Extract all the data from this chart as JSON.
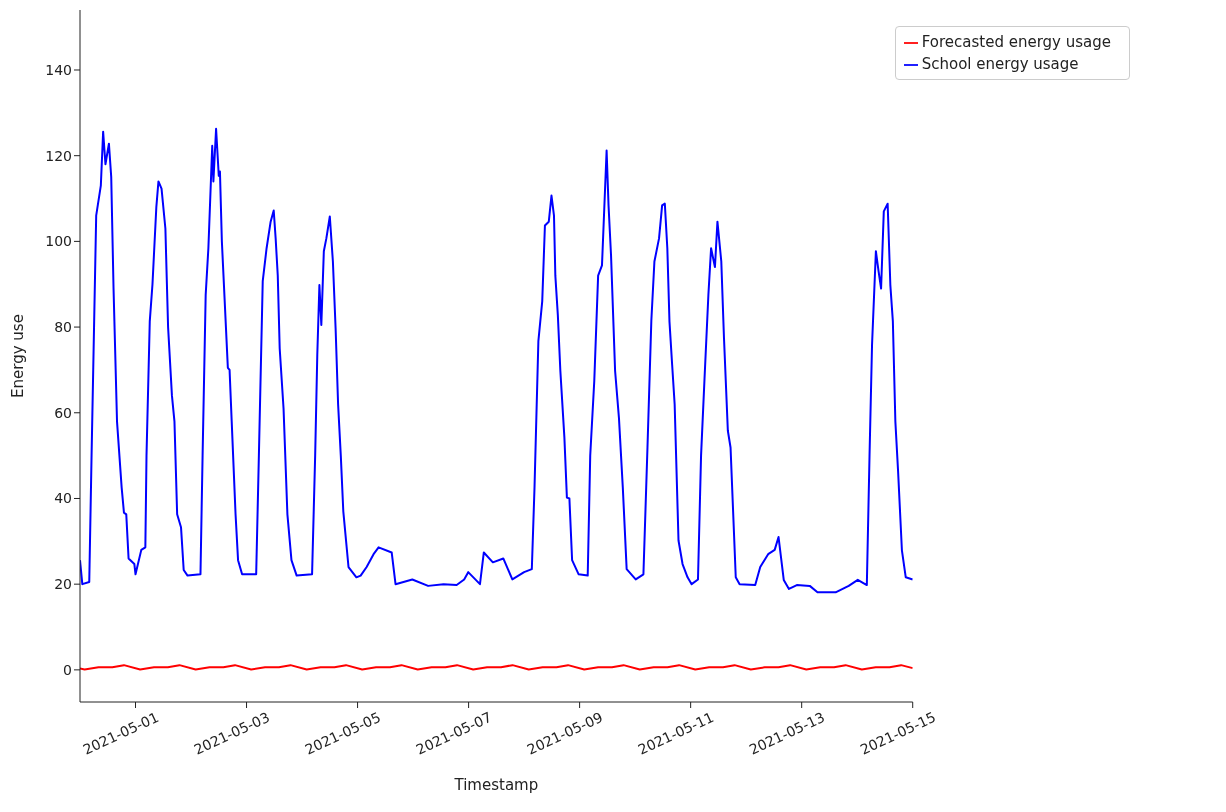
{
  "chart_data": {
    "type": "line",
    "xlabel": "Timestamp",
    "ylabel": "Energy use",
    "xlim": [
      "2021-04-30",
      "2021-05-15"
    ],
    "xticks": [
      "2021-05-01",
      "2021-05-03",
      "2021-05-05",
      "2021-05-07",
      "2021-05-09",
      "2021-05-11",
      "2021-05-13",
      "2021-05-15"
    ],
    "ylim": [
      -7.5,
      154
    ],
    "yticks": [
      0,
      20,
      40,
      60,
      80,
      100,
      120,
      140
    ],
    "legend": "top right",
    "series": [
      {
        "name": "School energy usage",
        "color": "#0000ff",
        "x": [
          "2021-04-30T00:00",
          "2021-04-30T01:00",
          "2021-04-30T04:00",
          "2021-04-30T05:00",
          "2021-04-30T07:00",
          "2021-04-30T09:00",
          "2021-04-30T10:00",
          "2021-04-30T11:00",
          "2021-04-30T12:30",
          "2021-04-30T13:30",
          "2021-04-30T14:30",
          "2021-04-30T16:00",
          "2021-04-30T18:00",
          "2021-04-30T19:00",
          "2021-04-30T20:00",
          "2021-04-30T21:00",
          "2021-04-30T23:30",
          "2021-05-01T00:00",
          "2021-05-01T02:30",
          "2021-05-01T04:15",
          "2021-05-01T04:45",
          "2021-05-01T06:10",
          "2021-05-01T07:20",
          "2021-05-01T09:00",
          "2021-05-01T09:55",
          "2021-05-01T11:15",
          "2021-05-01T12:55",
          "2021-05-01T13:30",
          "2021-05-01T14:05",
          "2021-05-01T15:45",
          "2021-05-01T16:50",
          "2021-05-01T18:00",
          "2021-05-01T19:40",
          "2021-05-01T20:50",
          "2021-05-01T22:30",
          "2021-05-02T04:05",
          "2021-05-02T05:00",
          "2021-05-02T06:20",
          "2021-05-02T07:30",
          "2021-05-02T09:10",
          "2021-05-02T09:40",
          "2021-05-02T10:50",
          "2021-05-02T12:00",
          "2021-05-02T12:30",
          "2021-05-02T13:20",
          "2021-05-02T15:55",
          "2021-05-02T16:40",
          "2021-05-02T17:35",
          "2021-05-02T19:15",
          "2021-05-02T20:20",
          "2021-05-02T22:05",
          "2021-05-03T04:10",
          "2021-05-03T05:20",
          "2021-05-03T07:00",
          "2021-05-03T08:40",
          "2021-05-03T10:25",
          "2021-05-03T11:45",
          "2021-05-03T12:35",
          "2021-05-03T13:30",
          "2021-05-03T14:20",
          "2021-05-03T16:00",
          "2021-05-03T17:40",
          "2021-05-03T19:25",
          "2021-05-03T21:40",
          "2021-05-04T04:20",
          "2021-05-04T05:40",
          "2021-05-04T06:35",
          "2021-05-04T07:30",
          "2021-05-04T08:20",
          "2021-05-04T09:25",
          "2021-05-04T10:30",
          "2021-05-04T12:00",
          "2021-05-04T13:20",
          "2021-05-04T14:30",
          "2021-05-04T15:35",
          "2021-05-04T16:45",
          "2021-05-04T17:50",
          "2021-05-04T20:05",
          "2021-05-04T23:30",
          "2021-05-05T01:20",
          "2021-05-05T03:55",
          "2021-05-05T06:55",
          "2021-05-05T09:05",
          "2021-05-05T14:45",
          "2021-05-05T16:25",
          "2021-05-05T23:40",
          "2021-05-06T06:30",
          "2021-05-06T13:10",
          "2021-05-06T18:50",
          "2021-05-06T22:05",
          "2021-05-06T23:50",
          "2021-05-07T04:55",
          "2021-05-07T06:35",
          "2021-05-07T10:30",
          "2021-05-07T15:00",
          "2021-05-07T18:55",
          "2021-05-08T00:00",
          "2021-05-08T03:20",
          "2021-05-08T04:30",
          "2021-05-08T06:10",
          "2021-05-08T07:50",
          "2021-05-08T09:00",
          "2021-05-08T10:40",
          "2021-05-08T11:50",
          "2021-05-08T12:55",
          "2021-05-08T13:30",
          "2021-05-08T14:35",
          "2021-05-08T15:40",
          "2021-05-08T17:25",
          "2021-05-08T18:30",
          "2021-05-08T19:35",
          "2021-05-08T20:45",
          "2021-05-08T23:35",
          "2021-05-09T03:30",
          "2021-05-09T04:35",
          "2021-05-09T06:20",
          "2021-05-09T08:00",
          "2021-05-09T09:40",
          "2021-05-09T11:40",
          "2021-05-09T12:30",
          "2021-05-09T13:35",
          "2021-05-09T15:20",
          "2021-05-09T17:00",
          "2021-05-09T18:40",
          "2021-05-09T20:20",
          "2021-05-10T00:15",
          "2021-05-10T03:35",
          "2021-05-10T05:20",
          "2021-05-10T07:00",
          "2021-05-10T08:20",
          "2021-05-10T10:20",
          "2021-05-10T11:40",
          "2021-05-10T12:50",
          "2021-05-10T13:55",
          "2021-05-10T14:50",
          "2021-05-10T16:00",
          "2021-05-10T17:05",
          "2021-05-10T18:45",
          "2021-05-10T20:30",
          "2021-05-10T22:40",
          "2021-05-11T00:25",
          "2021-05-11T03:10",
          "2021-05-11T04:30",
          "2021-05-11T06:00",
          "2021-05-11T07:40",
          "2021-05-11T08:50",
          "2021-05-11T10:30",
          "2021-05-11T11:35",
          "2021-05-11T13:15",
          "2021-05-11T14:25",
          "2021-05-11T16:05",
          "2021-05-11T17:15",
          "2021-05-11T19:30",
          "2021-05-11T21:10",
          "2021-05-12T03:55",
          "2021-05-12T06:05",
          "2021-05-12T09:30",
          "2021-05-12T12:20",
          "2021-05-12T14:00",
          "2021-05-12T16:15",
          "2021-05-12T18:30",
          "2021-05-12T21:55",
          "2021-05-13T03:30",
          "2021-05-13T06:50",
          "2021-05-13T14:40",
          "2021-05-13T20:20",
          "2021-05-14T00:15",
          "2021-05-14T04:10",
          "2021-05-14T05:20",
          "2021-05-14T06:25",
          "2021-05-14T08:05",
          "2021-05-14T09:15",
          "2021-05-14T10:20",
          "2021-05-14T11:30",
          "2021-05-14T13:10",
          "2021-05-14T14:20",
          "2021-05-14T15:25",
          "2021-05-14T16:30",
          "2021-05-14T17:40",
          "2021-05-14T19:20",
          "2021-05-14T21:00",
          "2021-05-15T00:00"
        ],
        "values": [
          25.6,
          20,
          20.5,
          50,
          106,
          113,
          125.6,
          118,
          122.8,
          115,
          89,
          58,
          42.6,
          36.7,
          36.3,
          26,
          24.7,
          22.3,
          28,
          28.6,
          50,
          81.4,
          90,
          108,
          114,
          112.3,
          103,
          91.4,
          80,
          64,
          58,
          36.3,
          33.3,
          23.3,
          22,
          22.3,
          50,
          87.5,
          98.4,
          122.3,
          114,
          126.3,
          115.3,
          116.3,
          100,
          70.5,
          70,
          58,
          36.3,
          25.6,
          22.3,
          22.3,
          50,
          90.7,
          98.4,
          104.6,
          107.2,
          100.7,
          92,
          75,
          61,
          36.3,
          25.6,
          22,
          22.3,
          50,
          73.5,
          89.8,
          80.5,
          97.7,
          100.7,
          105.8,
          95.3,
          79.8,
          62,
          50,
          37,
          24,
          21.6,
          22,
          24,
          27,
          28.6,
          27.4,
          20,
          21.1,
          19.6,
          20,
          19.8,
          21.1,
          22.8,
          20,
          27.4,
          25.1,
          26,
          21.1,
          22.8,
          23.5,
          42.6,
          76.7,
          86,
          103.7,
          104.6,
          110.7,
          106,
          92,
          82.8,
          69.8,
          54.2,
          40.2,
          40,
          25.6,
          22.3,
          22,
          50,
          67.4,
          92,
          94.4,
          121.2,
          108.4,
          96.7,
          69.8,
          58.8,
          42.6,
          23.5,
          21.1,
          22.3,
          51.9,
          81.4,
          95.3,
          100.7,
          108.4,
          108.8,
          98.4,
          81.4,
          71.2,
          62,
          30.2,
          24.7,
          21.6,
          20,
          21.1,
          50,
          68,
          87.5,
          98.4,
          94,
          104.6,
          95.3,
          77.4,
          55.8,
          51.9,
          21.6,
          20,
          19.8,
          24,
          27,
          28,
          31,
          21,
          18.9,
          19.8,
          19.6,
          18.1,
          18.1,
          19.6,
          21,
          19.8,
          50,
          75.8,
          97.7,
          93,
          89,
          107,
          108.8,
          89.8,
          81.4,
          58,
          46.5,
          27.9,
          21.6,
          21.1
        ]
      },
      {
        "name": "Forecasted energy usage",
        "color": "#ff0000",
        "x": [
          "2021-04-30T00:00",
          "2021-04-30T02:00",
          "2021-04-30T08:00",
          "2021-04-30T14:00",
          "2021-04-30T19:00",
          "2021-05-01T02:00",
          "2021-05-01T08:00",
          "2021-05-01T14:00",
          "2021-05-01T19:00",
          "2021-05-02T02:00",
          "2021-05-02T08:00",
          "2021-05-02T14:00",
          "2021-05-02T19:00",
          "2021-05-03T02:00",
          "2021-05-03T08:00",
          "2021-05-03T14:00",
          "2021-05-03T19:00",
          "2021-05-04T02:00",
          "2021-05-04T08:00",
          "2021-05-04T14:00",
          "2021-05-04T19:00",
          "2021-05-05T02:00",
          "2021-05-05T08:00",
          "2021-05-05T14:00",
          "2021-05-05T19:00",
          "2021-05-06T02:00",
          "2021-05-06T08:00",
          "2021-05-06T14:00",
          "2021-05-06T19:00",
          "2021-05-07T02:00",
          "2021-05-07T08:00",
          "2021-05-07T14:00",
          "2021-05-07T19:00",
          "2021-05-08T02:00",
          "2021-05-08T08:00",
          "2021-05-08T14:00",
          "2021-05-08T19:00",
          "2021-05-09T02:00",
          "2021-05-09T08:00",
          "2021-05-09T14:00",
          "2021-05-09T19:00",
          "2021-05-10T02:00",
          "2021-05-10T08:00",
          "2021-05-10T14:00",
          "2021-05-10T19:00",
          "2021-05-11T02:00",
          "2021-05-11T08:00",
          "2021-05-11T14:00",
          "2021-05-11T19:00",
          "2021-05-12T02:00",
          "2021-05-12T08:00",
          "2021-05-12T14:00",
          "2021-05-12T19:00",
          "2021-05-13T02:00",
          "2021-05-13T08:00",
          "2021-05-13T14:00",
          "2021-05-13T19:00",
          "2021-05-14T02:00",
          "2021-05-14T08:00",
          "2021-05-14T14:00",
          "2021-05-14T19:00",
          "2021-05-15T00:00"
        ],
        "values": [
          0.3,
          0.1,
          0.6,
          0.6,
          1.1,
          0.1,
          0.6,
          0.6,
          1.1,
          0.1,
          0.6,
          0.6,
          1.1,
          0.1,
          0.6,
          0.6,
          1.1,
          0.1,
          0.6,
          0.6,
          1.1,
          0.1,
          0.6,
          0.6,
          1.1,
          0.1,
          0.6,
          0.6,
          1.1,
          0.1,
          0.6,
          0.6,
          1.1,
          0.1,
          0.6,
          0.6,
          1.1,
          0.1,
          0.6,
          0.6,
          1.1,
          0.1,
          0.6,
          0.6,
          1.1,
          0.1,
          0.6,
          0.6,
          1.1,
          0.1,
          0.6,
          0.6,
          1.1,
          0.1,
          0.6,
          0.6,
          1.1,
          0.1,
          0.6,
          0.6,
          1.1,
          0.4
        ]
      }
    ]
  }
}
